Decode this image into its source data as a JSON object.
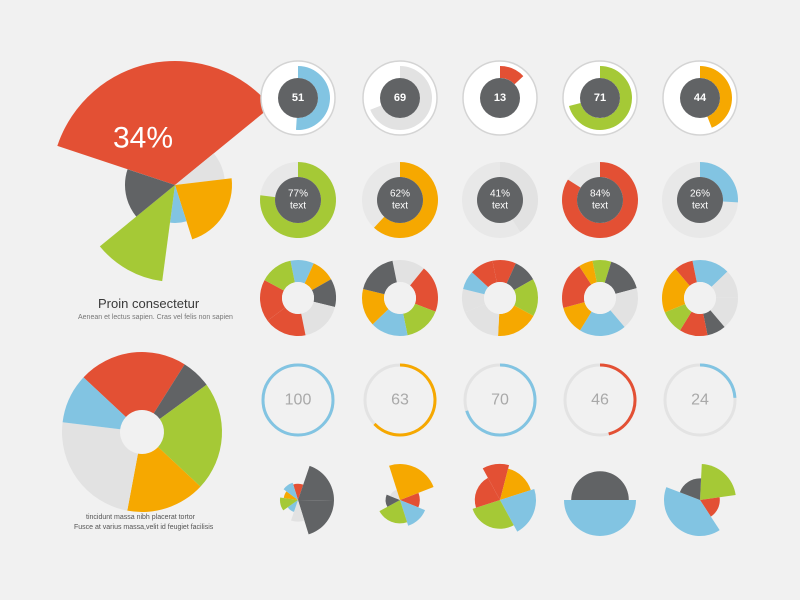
{
  "palette": {
    "red": "#e35034",
    "orange": "#f6a800",
    "green": "#a5c936",
    "blue": "#82c4e2",
    "dark": "#616365",
    "light": "#e2e2e2",
    "ring": "#d4d4d4",
    "bg": "#f1f1f1"
  },
  "chart_data": [
    {
      "type": "pie",
      "name": "featured-polar-pie",
      "title": "34%",
      "style": "polar",
      "slices": [
        {
          "value": 34,
          "color": "red"
        },
        {
          "value": 9,
          "color": "light"
        },
        {
          "value": 22,
          "color": "orange"
        },
        {
          "value": 7,
          "color": "blue"
        },
        {
          "value": 12,
          "color": "green"
        },
        {
          "value": 16,
          "color": "dark"
        }
      ],
      "caption_title": "Proin consectetur",
      "caption_text": "Aenean et lectus sapien. Cras vel felis non sapien"
    },
    {
      "type": "pie",
      "name": "featured-donut",
      "style": "donut",
      "slices": [
        {
          "value": 22,
          "color": "red"
        },
        {
          "value": 6,
          "color": "dark"
        },
        {
          "value": 22,
          "color": "green"
        },
        {
          "value": 16,
          "color": "orange"
        },
        {
          "value": 24,
          "color": "light"
        },
        {
          "value": 10,
          "color": "blue"
        }
      ],
      "caption_line1": "tincidunt massa nibh placerat tortor",
      "caption_line2": "Fusce at varius massa,velit id feugiet facilisis"
    },
    {
      "type": "pie",
      "name": "gauge-row",
      "style": "gauge",
      "items": [
        {
          "label": "51",
          "value": 51,
          "color": "blue"
        },
        {
          "label": "69",
          "value": 69,
          "color": "light"
        },
        {
          "label": "13",
          "value": 13,
          "color": "red"
        },
        {
          "label": "71",
          "value": 71,
          "color": "green"
        },
        {
          "label": "44",
          "value": 44,
          "color": "orange"
        }
      ]
    },
    {
      "type": "pie",
      "name": "percent-row",
      "style": "percent-donut",
      "items": [
        {
          "label": "77%",
          "sub": "text",
          "value": 77,
          "color": "green"
        },
        {
          "label": "62%",
          "sub": "text",
          "value": 62,
          "color": "orange"
        },
        {
          "label": "41%",
          "sub": "text",
          "value": 41,
          "color": "light"
        },
        {
          "label": "84%",
          "sub": "text",
          "value": 84,
          "color": "red"
        },
        {
          "label": "26%",
          "sub": "text",
          "value": 26,
          "color": "blue"
        }
      ]
    },
    {
      "type": "pie",
      "name": "multi-donut-row",
      "style": "multi-donut",
      "items": [
        {
          "slices": [
            {
              "value": 10,
              "color": "blue"
            },
            {
              "value": 10,
              "color": "orange"
            },
            {
              "value": 12,
              "color": "dark"
            },
            {
              "value": 18,
              "color": "light"
            },
            {
              "value": 18,
              "color": "red"
            },
            {
              "value": 18,
              "color": "red"
            },
            {
              "value": 14,
              "color": "green"
            }
          ]
        },
        {
          "slices": [
            {
              "value": 14,
              "color": "light"
            },
            {
              "value": 20,
              "color": "red"
            },
            {
              "value": 16,
              "color": "green"
            },
            {
              "value": 16,
              "color": "blue"
            },
            {
              "value": 16,
              "color": "orange"
            },
            {
              "value": 18,
              "color": "dark"
            }
          ]
        },
        {
          "slices": [
            {
              "value": 10,
              "color": "red"
            },
            {
              "value": 10,
              "color": "dark"
            },
            {
              "value": 16,
              "color": "green"
            },
            {
              "value": 18,
              "color": "orange"
            },
            {
              "value": 18,
              "color": "light"
            },
            {
              "value": 10,
              "color": "light"
            },
            {
              "value": 8,
              "color": "blue"
            },
            {
              "value": 10,
              "color": "red"
            }
          ]
        },
        {
          "slices": [
            {
              "value": 8,
              "color": "green"
            },
            {
              "value": 16,
              "color": "dark"
            },
            {
              "value": 18,
              "color": "light"
            },
            {
              "value": 20,
              "color": "blue"
            },
            {
              "value": 12,
              "color": "orange"
            },
            {
              "value": 20,
              "color": "red"
            },
            {
              "value": 6,
              "color": "orange"
            }
          ]
        },
        {
          "slices": [
            {
              "value": 16,
              "color": "blue"
            },
            {
              "value": 12,
              "color": "light"
            },
            {
              "value": 14,
              "color": "light"
            },
            {
              "value": 8,
              "color": "dark"
            },
            {
              "value": 12,
              "color": "red"
            },
            {
              "value": 10,
              "color": "green"
            },
            {
              "value": 20,
              "color": "orange"
            },
            {
              "value": 8,
              "color": "red"
            }
          ]
        }
      ]
    },
    {
      "type": "pie",
      "name": "progress-ring-row",
      "style": "progress-ring",
      "items": [
        {
          "label": "100",
          "value": 100,
          "color": "blue"
        },
        {
          "label": "63",
          "value": 63,
          "color": "orange"
        },
        {
          "label": "70",
          "value": 70,
          "color": "blue"
        },
        {
          "label": "46",
          "value": 46,
          "color": "red"
        },
        {
          "label": "24",
          "value": 24,
          "color": "blue"
        }
      ]
    },
    {
      "type": "pie",
      "name": "polar-pie-row",
      "style": "polar",
      "items": [
        {
          "slices": [
            {
              "value": 10,
              "color": "red",
              "r": 0.45
            },
            {
              "value": 20,
              "color": "dark",
              "r": 1.0
            },
            {
              "value": 20,
              "color": "dark",
              "r": 1.0
            },
            {
              "value": 10,
              "color": "light",
              "r": 0.6
            },
            {
              "value": 10,
              "color": "blue",
              "r": 0.35
            },
            {
              "value": 12,
              "color": "green",
              "r": 0.5
            },
            {
              "value": 8,
              "color": "orange",
              "r": 0.4
            },
            {
              "value": 10,
              "color": "blue",
              "r": 0.5
            }
          ]
        },
        {
          "slices": [
            {
              "value": 12,
              "color": "red",
              "r": 0.55
            },
            {
              "value": 14,
              "color": "blue",
              "r": 0.75
            },
            {
              "value": 22,
              "color": "green",
              "r": 0.65
            },
            {
              "value": 14,
              "color": "dark",
              "r": 0.4
            },
            {
              "value": 14,
              "color": "light",
              "r": 0.3
            },
            {
              "value": 24,
              "color": "orange",
              "r": 1.0
            }
          ]
        },
        {
          "slices": [
            {
              "value": 12,
              "color": "red",
              "r": 1.0
            },
            {
              "value": 16,
              "color": "orange",
              "r": 0.9
            },
            {
              "value": 22,
              "color": "blue",
              "r": 1.0
            },
            {
              "value": 28,
              "color": "green",
              "r": 0.8
            },
            {
              "value": 22,
              "color": "red",
              "r": 0.7
            }
          ]
        },
        {
          "slices": [
            {
              "value": 50,
              "color": "dark",
              "r": 0.8
            },
            {
              "value": 50,
              "color": "blue",
              "r": 1.0
            }
          ]
        },
        {
          "slices": [
            {
              "value": 22,
              "color": "green",
              "r": 1.0
            },
            {
              "value": 18,
              "color": "red",
              "r": 0.55
            },
            {
              "value": 40,
              "color": "blue",
              "r": 1.0
            },
            {
              "value": 20,
              "color": "dark",
              "r": 0.6
            }
          ]
        }
      ]
    }
  ]
}
